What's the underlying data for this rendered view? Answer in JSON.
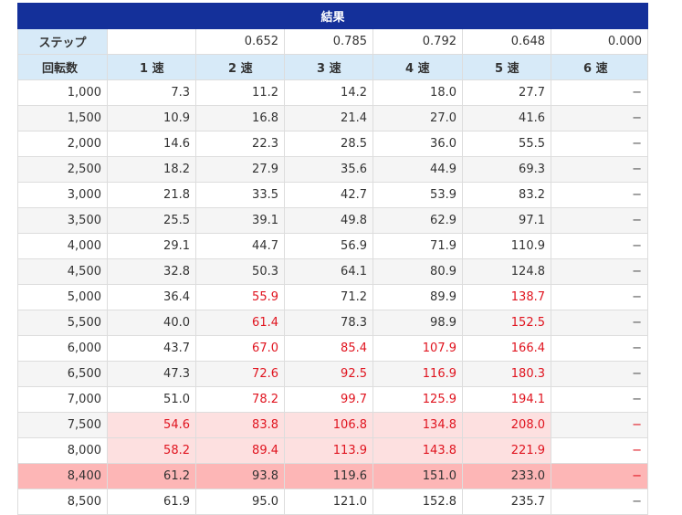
{
  "table": {
    "title": "結果",
    "step_label": "ステップ",
    "step_values": [
      "",
      "0.652",
      "0.785",
      "0.792",
      "0.648",
      "0.000"
    ],
    "rpm_header": "回転数",
    "gear_headers": [
      "1 速",
      "2 速",
      "3 速",
      "4 速",
      "5 速",
      "6 速"
    ],
    "rows": [
      {
        "rpm": "1,000",
        "values": [
          "7.3",
          "11.2",
          "14.2",
          "18.0",
          "27.7",
          "−"
        ],
        "red": []
      },
      {
        "rpm": "1,500",
        "values": [
          "10.9",
          "16.8",
          "21.4",
          "27.0",
          "41.6",
          "−"
        ],
        "red": []
      },
      {
        "rpm": "2,000",
        "values": [
          "14.6",
          "22.3",
          "28.5",
          "36.0",
          "55.5",
          "−"
        ],
        "red": []
      },
      {
        "rpm": "2,500",
        "values": [
          "18.2",
          "27.9",
          "35.6",
          "44.9",
          "69.3",
          "−"
        ],
        "red": []
      },
      {
        "rpm": "3,000",
        "values": [
          "21.8",
          "33.5",
          "42.7",
          "53.9",
          "83.2",
          "−"
        ],
        "red": []
      },
      {
        "rpm": "3,500",
        "values": [
          "25.5",
          "39.1",
          "49.8",
          "62.9",
          "97.1",
          "−"
        ],
        "red": []
      },
      {
        "rpm": "4,000",
        "values": [
          "29.1",
          "44.7",
          "56.9",
          "71.9",
          "110.9",
          "−"
        ],
        "red": []
      },
      {
        "rpm": "4,500",
        "values": [
          "32.8",
          "50.3",
          "64.1",
          "80.9",
          "124.8",
          "−"
        ],
        "red": []
      },
      {
        "rpm": "5,000",
        "values": [
          "36.4",
          "55.9",
          "71.2",
          "89.9",
          "138.7",
          "−"
        ],
        "red": [
          1,
          4
        ]
      },
      {
        "rpm": "5,500",
        "values": [
          "40.0",
          "61.4",
          "78.3",
          "98.9",
          "152.5",
          "−"
        ],
        "red": [
          1,
          4
        ]
      },
      {
        "rpm": "6,000",
        "values": [
          "43.7",
          "67.0",
          "85.4",
          "107.9",
          "166.4",
          "−"
        ],
        "red": [
          1,
          2,
          3,
          4
        ]
      },
      {
        "rpm": "6,500",
        "values": [
          "47.3",
          "72.6",
          "92.5",
          "116.9",
          "180.3",
          "−"
        ],
        "red": [
          1,
          2,
          3,
          4
        ]
      },
      {
        "rpm": "7,000",
        "values": [
          "51.0",
          "78.2",
          "99.7",
          "125.9",
          "194.1",
          "−"
        ],
        "red": [
          1,
          2,
          3,
          4
        ]
      },
      {
        "rpm": "7,500",
        "values": [
          "54.6",
          "83.8",
          "106.8",
          "134.8",
          "208.0",
          "−"
        ],
        "red": [
          0,
          1,
          2,
          3,
          4
        ],
        "zone": "warn"
      },
      {
        "rpm": "8,000",
        "values": [
          "58.2",
          "89.4",
          "113.9",
          "143.8",
          "221.9",
          "−"
        ],
        "red": [
          0,
          1,
          2,
          3,
          4
        ],
        "zone": "warn"
      },
      {
        "rpm": "8,400",
        "values": [
          "61.2",
          "93.8",
          "119.6",
          "151.0",
          "233.0",
          "−"
        ],
        "red": [],
        "zone": "max"
      },
      {
        "rpm": "8,500",
        "values": [
          "61.9",
          "95.0",
          "121.0",
          "152.8",
          "235.7",
          "−"
        ],
        "red": []
      }
    ]
  },
  "colors": {
    "title_bg": "#14309a",
    "header_bg": "#d7eaf8",
    "red_text": "#e0141f",
    "warn_bg": "#fde0e0",
    "max_bg": "#fdb6b6"
  }
}
